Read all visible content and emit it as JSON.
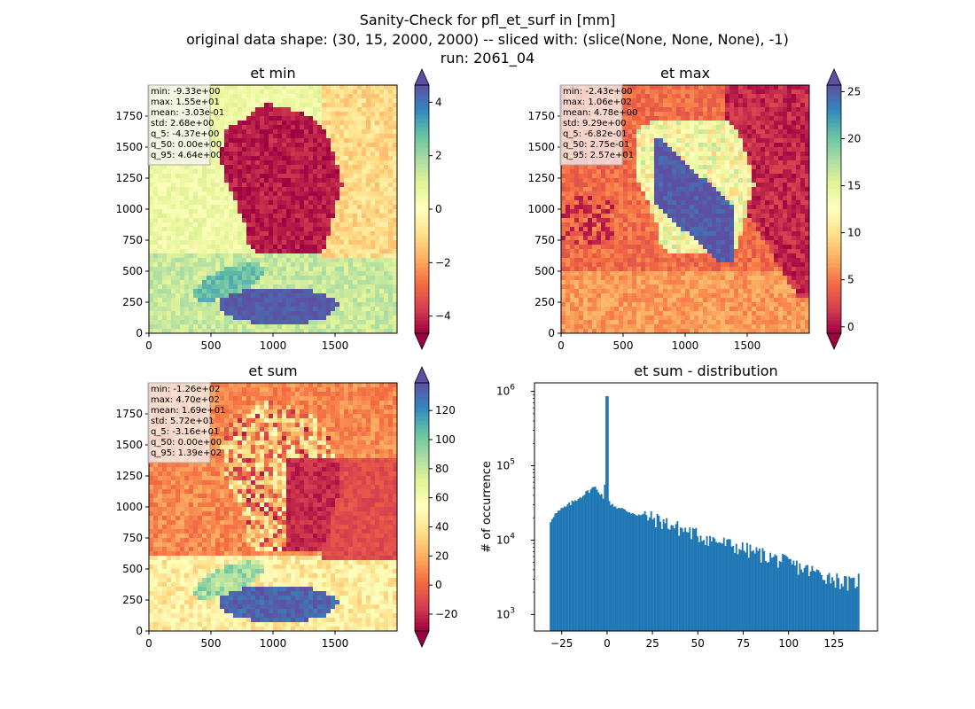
{
  "figure": {
    "title_lines": [
      "Sanity-Check for pfl_et_surf in [mm]",
      "original data shape: (30, 15, 2000, 2000) -- sliced with: (slice(None, None, None), -1)",
      "run: 2061_04"
    ]
  },
  "chart_data": [
    {
      "type": "heatmap",
      "title": "et min",
      "colormap": "Spectral",
      "xticks": [
        "0",
        "500",
        "1000",
        "1500"
      ],
      "yticks": [
        "0",
        "250",
        "500",
        "750",
        "1000",
        "1250",
        "1500",
        "1750"
      ],
      "xlim": [
        0,
        2000
      ],
      "ylim": [
        0,
        2000
      ],
      "colorbar": {
        "range": [
          -4.64,
          4.64
        ],
        "extend": "both",
        "ticks": [
          "4",
          "2",
          "0",
          "−2",
          "−4"
        ],
        "tick_values": [
          4,
          2,
          0,
          -2,
          -4
        ]
      },
      "stats": [
        "min: -9.33e+00",
        "max: 1.55e+01",
        "mean: -3.03e-01",
        "std: 2.68e+00",
        "q_5: -4.37e+00",
        "q_50: 0.00e+00",
        "q_95: 4.64e+00"
      ]
    },
    {
      "type": "heatmap",
      "title": "et max",
      "colormap": "Spectral",
      "xticks": [
        "0",
        "500",
        "1000",
        "1500"
      ],
      "yticks": [
        "0",
        "250",
        "500",
        "750",
        "1000",
        "1250",
        "1500",
        "1750"
      ],
      "xlim": [
        0,
        2000
      ],
      "ylim": [
        0,
        2000
      ],
      "colorbar": {
        "range": [
          -0.682,
          25.7
        ],
        "extend": "both",
        "ticks": [
          "25",
          "20",
          "15",
          "10",
          "5",
          "0"
        ],
        "tick_values": [
          25,
          20,
          15,
          10,
          5,
          0
        ]
      },
      "stats": [
        "min: -2.43e+00",
        "max: 1.06e+02",
        "mean: 4.78e+00",
        "std: 9.29e+00",
        "q_5: -6.82e-01",
        "q_50: 2.75e-01",
        "q_95: 2.57e+01"
      ]
    },
    {
      "type": "heatmap",
      "title": "et sum",
      "colormap": "Spectral",
      "xticks": [
        "0",
        "500",
        "1000",
        "1500"
      ],
      "yticks": [
        "0",
        "250",
        "500",
        "750",
        "1000",
        "1250",
        "1500",
        "1750"
      ],
      "xlim": [
        0,
        2000
      ],
      "ylim": [
        0,
        2000
      ],
      "colorbar": {
        "range": [
          -31.6,
          139
        ],
        "extend": "both",
        "ticks": [
          "120",
          "100",
          "80",
          "60",
          "40",
          "20",
          "0",
          "−20"
        ],
        "tick_values": [
          120,
          100,
          80,
          60,
          40,
          20,
          0,
          -20
        ]
      },
      "stats": [
        "min: -1.26e+02",
        "max: 4.70e+02",
        "mean: 1.69e+01",
        "std: 5.72e+01",
        "q_5: -3.16e+01",
        "q_50: 0.00e+00",
        "q_95: 1.39e+02"
      ]
    },
    {
      "type": "bar",
      "title": "et sum - distribution",
      "ylabel": "# of occurrence",
      "xlabel": "",
      "yscale": "log",
      "xlim": [
        -40,
        149
      ],
      "ylim": [
        600,
        1300000
      ],
      "xticks": [
        "−25",
        "0",
        "25",
        "50",
        "75",
        "100",
        "125"
      ],
      "xtick_values": [
        -25,
        0,
        25,
        50,
        75,
        100,
        125
      ],
      "ytick_values": [
        1000,
        10000,
        100000,
        1000000
      ],
      "ytick_bases": [
        "10",
        "10",
        "10",
        "10"
      ],
      "ytick_exps": [
        "3",
        "4",
        "5",
        "6"
      ],
      "color": "#1f77b4",
      "bin_range": [
        -31.6,
        139
      ],
      "envelope": [
        [
          -31.6,
          17000
        ],
        [
          -30,
          21000
        ],
        [
          -25,
          26000
        ],
        [
          -20,
          31000
        ],
        [
          -15,
          38000
        ],
        [
          -10,
          46000
        ],
        [
          -7,
          52000
        ],
        [
          -4,
          44000
        ],
        [
          -1.5,
          36000
        ],
        [
          0,
          860000
        ],
        [
          0.8,
          33000
        ],
        [
          5,
          28000
        ],
        [
          10,
          25000
        ],
        [
          20,
          21000
        ],
        [
          30,
          17500
        ],
        [
          40,
          14000
        ],
        [
          50,
          11500
        ],
        [
          60,
          9500
        ],
        [
          75,
          7500
        ],
        [
          90,
          5800
        ],
        [
          100,
          4800
        ],
        [
          110,
          3900
        ],
        [
          120,
          3300
        ],
        [
          130,
          2700
        ],
        [
          135,
          2500
        ],
        [
          139,
          3000
        ]
      ]
    }
  ]
}
